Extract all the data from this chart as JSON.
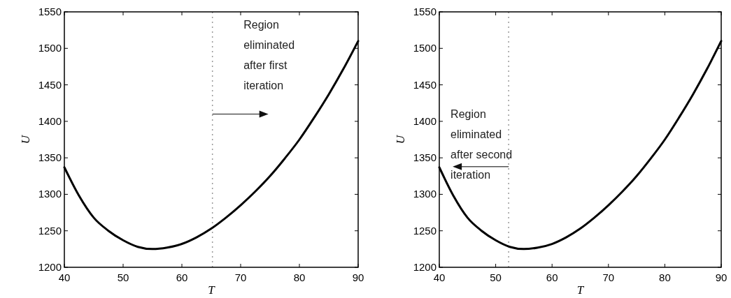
{
  "chart_data": [
    {
      "type": "line",
      "xlabel": "T",
      "ylabel": "U",
      "xlim": [
        40,
        90
      ],
      "ylim": [
        1200,
        1550
      ],
      "xticks": [
        40,
        50,
        60,
        70,
        80,
        90
      ],
      "yticks": [
        1200,
        1250,
        1300,
        1350,
        1400,
        1450,
        1500,
        1550
      ],
      "grid": false,
      "marker": "none",
      "line_style": "solid",
      "series": [
        {
          "color": "#000000",
          "x": [
            40,
            42.5,
            45,
            47.5,
            50,
            52.5,
            55,
            57.5,
            60,
            62.5,
            65,
            67.5,
            70,
            72.5,
            75,
            77.5,
            80,
            82.5,
            85,
            87.5,
            90
          ],
          "values": [
            1337,
            1298,
            1268,
            1250,
            1237,
            1228,
            1225,
            1227,
            1232,
            1241,
            1253,
            1268,
            1285,
            1304,
            1325,
            1349,
            1375,
            1405,
            1437,
            1472,
            1510
          ]
        }
      ],
      "ref_lines": [
        {
          "axis": "x",
          "value": 65.2,
          "color": "#999999",
          "line_style": "dotted"
        }
      ],
      "annotations": [
        "Region\neliminated\nafter first\niteration"
      ]
    },
    {
      "type": "line",
      "xlabel": "T",
      "ylabel": "U",
      "xlim": [
        40,
        90
      ],
      "ylim": [
        1200,
        1550
      ],
      "xticks": [
        40,
        50,
        60,
        70,
        80,
        90
      ],
      "yticks": [
        1200,
        1250,
        1300,
        1350,
        1400,
        1450,
        1500,
        1550
      ],
      "grid": false,
      "marker": "none",
      "line_style": "solid",
      "series": [
        {
          "color": "#000000",
          "x": [
            40,
            42.5,
            45,
            47.5,
            50,
            52.5,
            55,
            57.5,
            60,
            62.5,
            65,
            67.5,
            70,
            72.5,
            75,
            77.5,
            80,
            82.5,
            85,
            87.5,
            90
          ],
          "values": [
            1337,
            1298,
            1268,
            1250,
            1237,
            1228,
            1225,
            1227,
            1232,
            1241,
            1253,
            1268,
            1285,
            1304,
            1325,
            1349,
            1375,
            1405,
            1437,
            1472,
            1510
          ]
        }
      ],
      "ref_lines": [
        {
          "axis": "x",
          "value": 52.3,
          "color": "#999999",
          "line_style": "dotted"
        }
      ],
      "annotations": [
        "Region\neliminated\nafter second\niteration"
      ]
    }
  ]
}
